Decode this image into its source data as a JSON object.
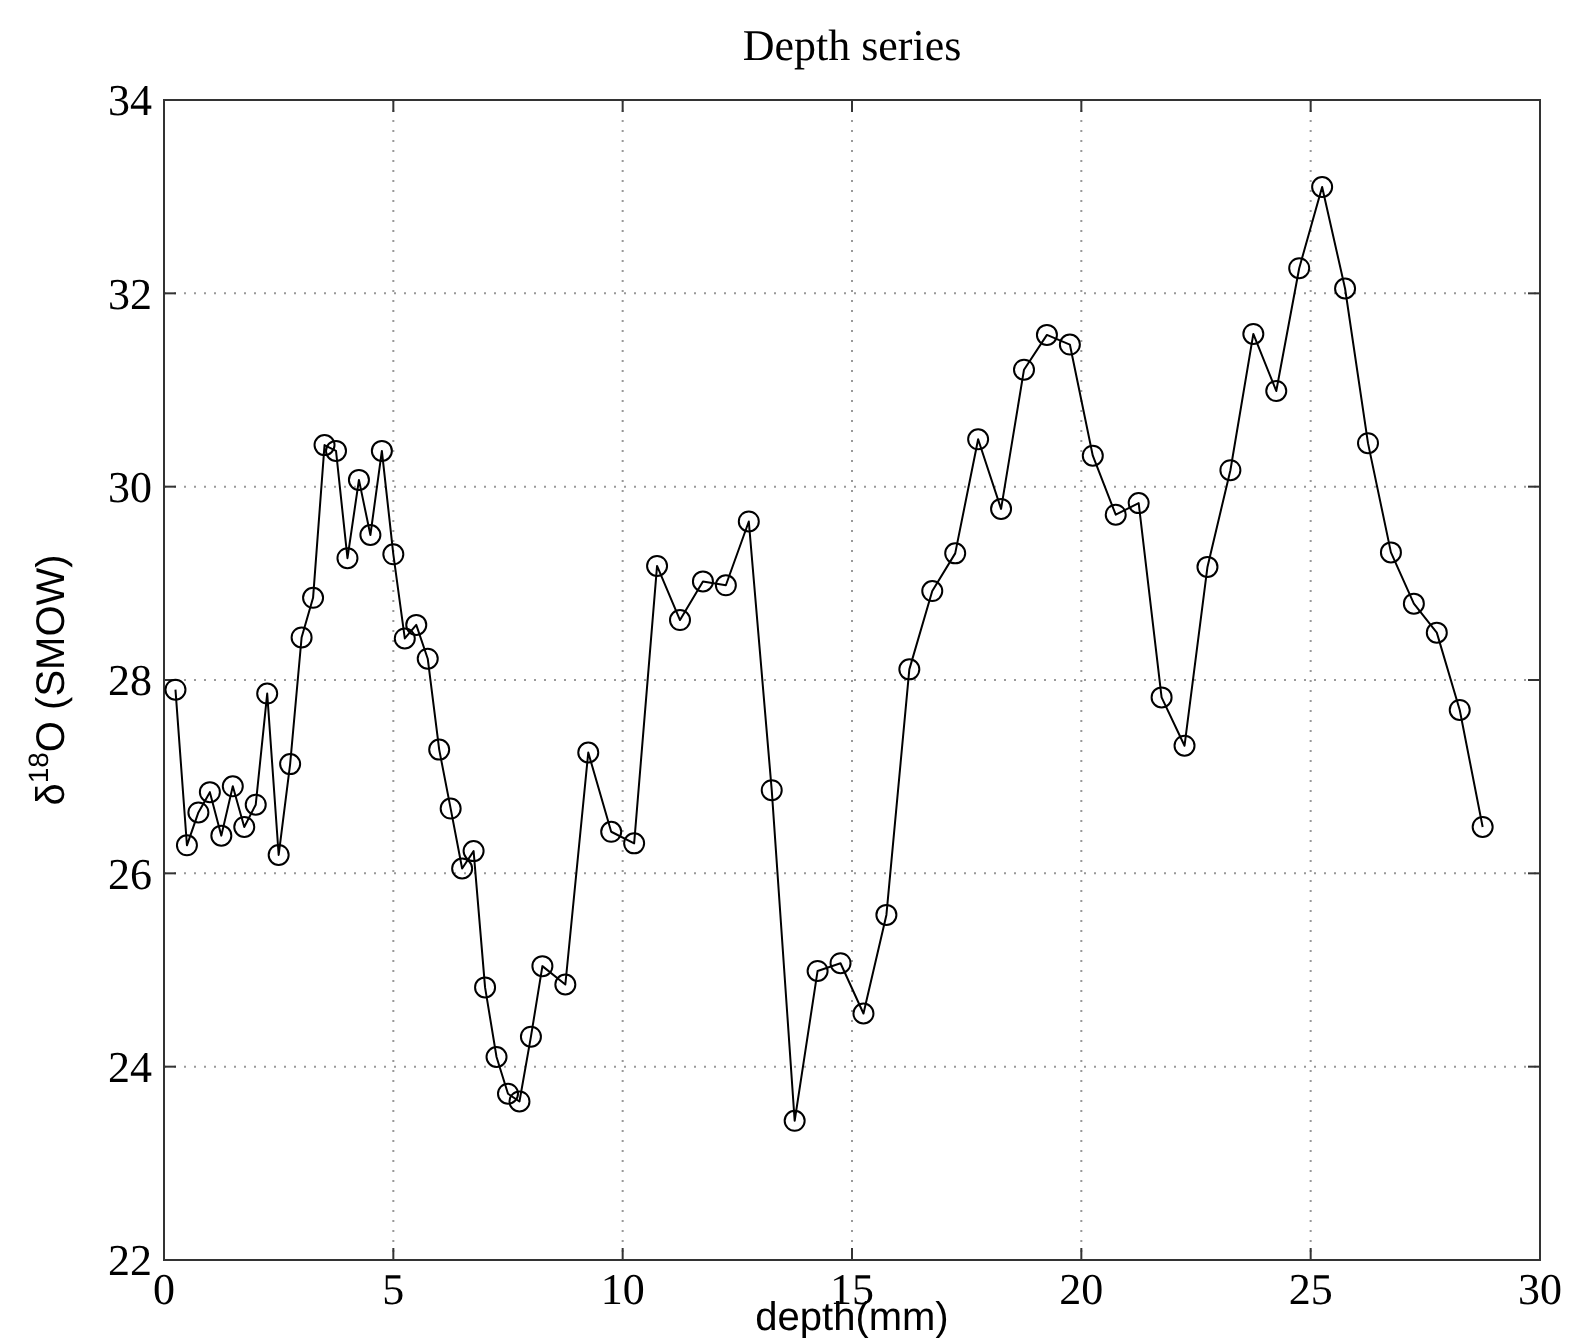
{
  "chart_data": {
    "type": "line",
    "title": "Depth series",
    "xlabel": "depth(mm)",
    "ylabel": "δ$^{18}$O (SMOW)",
    "xlim": [
      0,
      30
    ],
    "ylim": [
      22,
      34
    ],
    "xticks": [
      0,
      5,
      10,
      15,
      20,
      25,
      30
    ],
    "yticks": [
      22,
      24,
      26,
      28,
      30,
      32,
      34
    ],
    "grid": true,
    "marker": "circle",
    "line_style": "solid",
    "series": [
      {
        "color": "#000000",
        "x": [
          0.25,
          0.5,
          0.75,
          1,
          1.25,
          1.5,
          1.75,
          2,
          2.25,
          2.5,
          2.75,
          3,
          3.25,
          3.5,
          3.75,
          4,
          4.25,
          4.5,
          4.75,
          5,
          5.25,
          5.5,
          5.75,
          6,
          6.25,
          6.5,
          6.75,
          7,
          7.25,
          7.5,
          7.75,
          8,
          8.25,
          8.75,
          9.25,
          9.75,
          10.25,
          10.75,
          11.25,
          11.75,
          12.25,
          12.75,
          13.25,
          13.75,
          14.25,
          14.75,
          15.25,
          15.75,
          16.25,
          16.75,
          17.25,
          17.75,
          18.25,
          18.75,
          19.25,
          19.75,
          20.25,
          20.75,
          21.25,
          21.75,
          22.25,
          22.75,
          23.25,
          23.75,
          24.25,
          24.75,
          25.25,
          25.75,
          26.25,
          26.75,
          27.25,
          27.75,
          28.25,
          28.75
        ],
        "values": [
          27.9,
          26.29,
          26.63,
          26.84,
          26.39,
          26.9,
          26.48,
          26.71,
          27.86,
          26.19,
          27.13,
          28.44,
          28.85,
          30.43,
          30.37,
          29.26,
          30.07,
          29.5,
          30.37,
          29.3,
          28.43,
          28.57,
          28.22,
          27.28,
          26.67,
          26.05,
          26.23,
          24.82,
          24.1,
          23.72,
          23.64,
          24.31,
          25.04,
          24.85,
          27.25,
          26.43,
          26.31,
          29.18,
          28.62,
          29.02,
          28.98,
          29.64,
          26.86,
          23.44,
          24.99,
          25.07,
          24.55,
          25.57,
          28.11,
          28.92,
          29.31,
          30.49,
          29.77,
          31.21,
          31.57,
          31.47,
          30.32,
          29.71,
          29.83,
          27.82,
          27.32,
          29.17,
          30.17,
          31.58,
          30.99,
          32.26,
          33.1,
          32.05,
          30.45,
          29.32,
          28.79,
          28.49,
          27.69,
          26.48
        ]
      }
    ]
  }
}
